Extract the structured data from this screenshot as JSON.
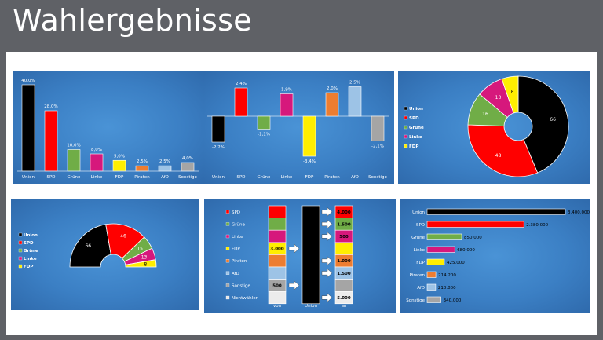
{
  "slide_title": "Wahlergebnisse",
  "colors": {
    "Union": "#000000",
    "SPD": "#ff0000",
    "Grüne": "#70ad47",
    "Linke": "#d6187c",
    "FDP": "#ffee00",
    "Piraten": "#ed7d31",
    "AfD": "#9dc3e6",
    "Sonstige": "#a5a5a5",
    "Nichtwähler": "#e7e6e6"
  },
  "chart_data": [
    {
      "type": "bar",
      "categories": [
        "Union",
        "SPD",
        "Grüne",
        "Linke",
        "FDP",
        "Piraten",
        "AfD",
        "Sonstige"
      ],
      "values": [
        40.0,
        28.0,
        10.0,
        8.0,
        5.0,
        2.5,
        2.5,
        4.0
      ],
      "labels": [
        "40,0%",
        "28,0%",
        "10,0%",
        "8,0%",
        "5,0%",
        "2,5%",
        "2,5%",
        "4,0%"
      ]
    },
    {
      "type": "bar",
      "categories": [
        "Union",
        "SPD",
        "Grüne",
        "Linke",
        "FDP",
        "Piraten",
        "AfD",
        "Sonstige"
      ],
      "values": [
        -2.2,
        2.4,
        -1.1,
        1.9,
        -3.4,
        2.0,
        2.5,
        -2.1
      ],
      "labels": [
        "-2,2%",
        "2,4%",
        "-1,1%",
        "1,9%",
        "-3,4%",
        "2,0%",
        "2,5%",
        "-2,1%"
      ]
    },
    {
      "type": "pie",
      "variant": "donut",
      "categories": [
        "Union",
        "SPD",
        "Grüne",
        "Linke",
        "FDP"
      ],
      "values": [
        66,
        48,
        16,
        13,
        8
      ],
      "legend": "left"
    },
    {
      "type": "pie",
      "variant": "half-donut (seat distribution)",
      "categories": [
        "Union",
        "SPD",
        "Grüne",
        "Linke",
        "FDP"
      ],
      "values": [
        66,
        46,
        15,
        13,
        8
      ],
      "legend": "left"
    },
    {
      "type": "table",
      "variant": "voter migration",
      "legend": [
        "SPD",
        "Grüne",
        "Linke",
        "FDP",
        "Piraten",
        "AfD",
        "Sonstige",
        "Nichtwähler"
      ],
      "columns": [
        "von",
        "Union",
        "an"
      ],
      "rows": [
        {
          "party": "SPD",
          "von": "",
          "an": "4.000"
        },
        {
          "party": "Grüne",
          "von": "",
          "an": "1.500"
        },
        {
          "party": "Linke",
          "von": "",
          "an": "500"
        },
        {
          "party": "FDP",
          "von": "3.000",
          "an": ""
        },
        {
          "party": "Piraten",
          "von": "",
          "an": "1.000"
        },
        {
          "party": "AfD",
          "von": "",
          "an": "1.500"
        },
        {
          "party": "Sonstige",
          "von": "500",
          "an": ""
        },
        {
          "party": "Nichtwähler",
          "von": "",
          "an": "5.000"
        }
      ]
    },
    {
      "type": "bar",
      "orientation": "horizontal",
      "categories": [
        "Union",
        "SPD",
        "Grüne",
        "Linke",
        "FDP",
        "Piraten",
        "AfD",
        "Sonstige"
      ],
      "values": [
        3400000,
        2380000,
        850000,
        680000,
        425000,
        214200,
        210800,
        340000
      ],
      "labels": [
        "3.400.000",
        "2.380.000",
        "850.000",
        "680.000",
        "425.000",
        "214.200",
        "210.800",
        "340.000"
      ]
    }
  ]
}
